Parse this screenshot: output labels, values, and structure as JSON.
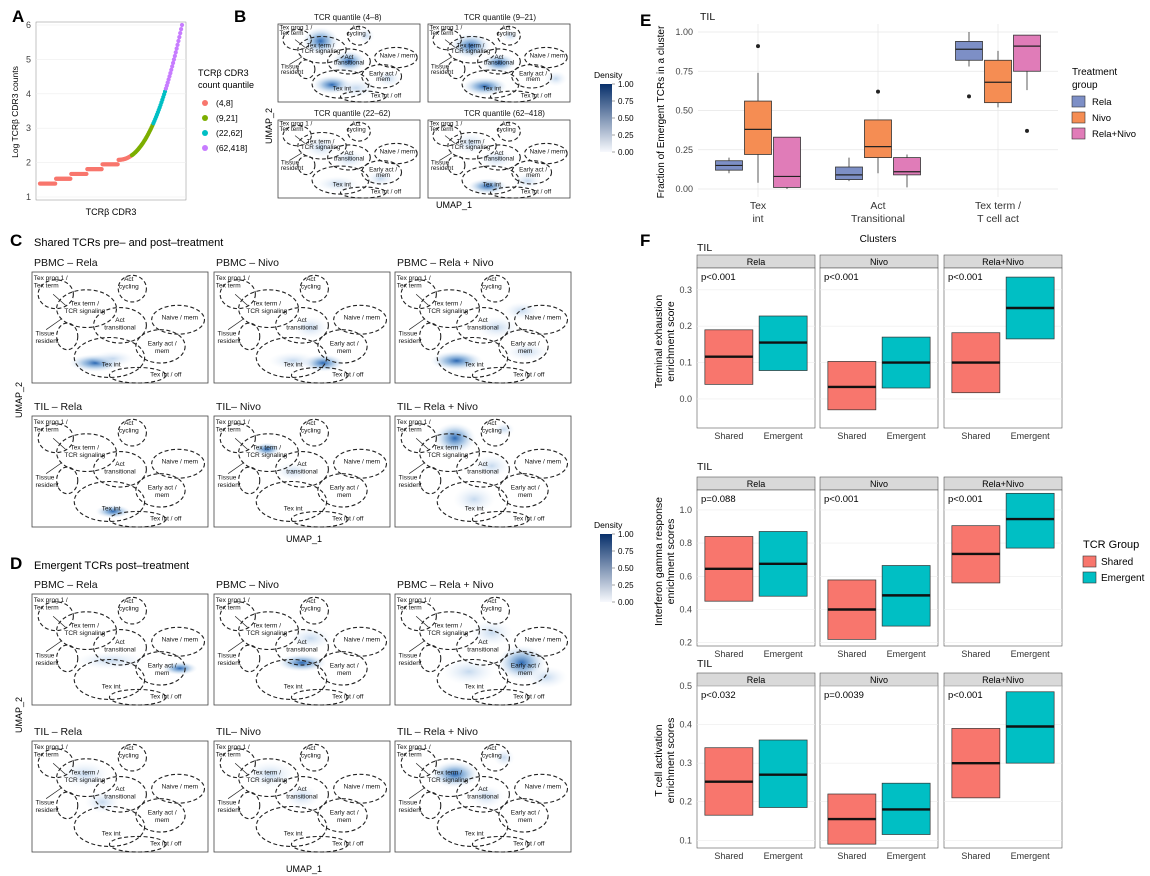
{
  "panels": {
    "A": {
      "label": "A",
      "ylabel": "Log TCRβ CDR3 counts",
      "xlabel": "TCRβ CDR3",
      "yticks": [
        "1",
        "2",
        "3",
        "4",
        "5",
        "6"
      ],
      "legend_title_1": "TCRβ CDR3",
      "legend_title_2": "count quantile",
      "legend": [
        {
          "label": "(4,8]",
          "color": "#F8766D"
        },
        {
          "label": "(9,21]",
          "color": "#7CAE00"
        },
        {
          "label": "(22,62]",
          "color": "#00BFC4"
        },
        {
          "label": "(62,418]",
          "color": "#C77CFF"
        }
      ]
    },
    "B": {
      "label": "B",
      "titles": [
        "TCR quantile (4–8)",
        "TCR quantile (9–21)",
        "TCR quantile (22–62)",
        "TCR quantile (62–418)"
      ],
      "xlabel": "UMAP_1",
      "ylabel": "UMAP_2"
    },
    "C": {
      "label": "C",
      "heading": "Shared TCRs pre– and post–treatment",
      "titles": [
        "PBMC – Rela",
        "PBMC – Nivo",
        "PBMC – Rela + Nivo",
        "TIL – Rela",
        "TIL– Nivo",
        "TIL – Rela + Nivo"
      ],
      "xlabel": "UMAP_1",
      "ylabel": "UMAP_2"
    },
    "D": {
      "label": "D",
      "heading": "Emergent TCRs post–treatment",
      "titles": [
        "PBMC – Rela",
        "PBMC – Nivo",
        "PBMC – Rela + Nivo",
        "TIL – Rela",
        "TIL– Nivo",
        "TIL – Rela + Nivo"
      ],
      "xlabel": "UMAP_1",
      "ylabel": "UMAP_2"
    },
    "density_legend": {
      "title": "Density",
      "ticks": [
        "1.00",
        "0.75",
        "0.50",
        "0.25",
        "0.00"
      ]
    },
    "umap_clusters": [
      "Tex prog 1 /",
      "Tex term",
      "Act",
      "cycling",
      "Tex term /",
      "TCR signaling",
      "Act",
      "transitional",
      "Naive / mem",
      "Tissue",
      "resident",
      "Early act /",
      "mem",
      "Tex int",
      "Tex int / off"
    ]
  },
  "chart_data": [
    {
      "type": "scatter",
      "id": "A",
      "xlabel": "TCRβ CDR3",
      "ylabel": "Log TCRβ CDR3 counts",
      "ylim": [
        1,
        6
      ],
      "series": [
        {
          "name": "(4,8]",
          "color": "#F8766D",
          "y_range": [
            1.39,
            2.08
          ]
        },
        {
          "name": "(9,21]",
          "color": "#7CAE00",
          "y_range": [
            2.2,
            3.04
          ]
        },
        {
          "name": "(22,62]",
          "color": "#00BFC4",
          "y_range": [
            3.09,
            4.13
          ]
        },
        {
          "name": "(62,418]",
          "color": "#C77CFF",
          "y_range": [
            4.13,
            6.0
          ]
        }
      ]
    },
    {
      "type": "box",
      "id": "E",
      "title": "TIL",
      "xlabel": "Clusters",
      "ylabel": "Fraction of Emergent TCRs in a cluster",
      "ylim": [
        0,
        1
      ],
      "yticks": [
        "0.00",
        "0.25",
        "0.50",
        "0.75",
        "1.00"
      ],
      "categories": [
        "Tex int",
        "Act Transitional",
        "Tex term / T cell act"
      ],
      "category_lines": [
        [
          "Tex",
          "int"
        ],
        [
          "Act",
          "Transitional"
        ],
        [
          "Tex term /",
          "T cell act"
        ]
      ],
      "legend_title": [
        "Treatment",
        "group"
      ],
      "series": [
        {
          "name": "Rela",
          "color": "#7D8FC6",
          "boxes": [
            {
              "q1": 0.12,
              "median": 0.15,
              "q3": 0.18,
              "lo": 0.1,
              "hi": 0.2
            },
            {
              "q1": 0.06,
              "median": 0.09,
              "q3": 0.14,
              "lo": 0.05,
              "hi": 0.2
            },
            {
              "q1": 0.82,
              "median": 0.89,
              "q3": 0.94,
              "lo": 0.78,
              "hi": 1.0,
              "outliers": [
                0.59
              ]
            }
          ]
        },
        {
          "name": "Nivo",
          "color": "#F58D53",
          "boxes": [
            {
              "q1": 0.22,
              "median": 0.38,
              "q3": 0.56,
              "lo": 0.04,
              "hi": 0.74,
              "outliers": [
                0.91
              ]
            },
            {
              "q1": 0.2,
              "median": 0.27,
              "q3": 0.44,
              "lo": 0.1,
              "hi": 0.44,
              "outliers": [
                0.62
              ]
            },
            {
              "q1": 0.55,
              "median": 0.68,
              "q3": 0.82,
              "lo": 0.52,
              "hi": 0.88
            }
          ]
        },
        {
          "name": "Rela+Nivo",
          "color": "#E07CB8",
          "boxes": [
            {
              "q1": 0.01,
              "median": 0.08,
              "q3": 0.33,
              "lo": 0.0,
              "hi": 0.33
            },
            {
              "q1": 0.09,
              "median": 0.11,
              "q3": 0.2,
              "lo": 0.01,
              "hi": 0.22
            },
            {
              "q1": 0.75,
              "median": 0.91,
              "q3": 0.98,
              "lo": 0.63,
              "hi": 0.98,
              "outliers": [
                0.37
              ]
            }
          ]
        }
      ]
    },
    {
      "type": "box",
      "id": "F1",
      "title": "TIL",
      "ylabel": "Terminal exhaustion enrichment score",
      "ylim": [
        -0.08,
        0.36
      ],
      "yticks": [
        0.0,
        0.1,
        0.2,
        0.3
      ],
      "facets": [
        "Rela",
        "Nivo",
        "Rela+Nivo"
      ],
      "pvalues": [
        "p<0.001",
        "p<0.001",
        "p<0.001"
      ],
      "categories": [
        "Shared",
        "Emergent"
      ],
      "legend_title": "TCR Group",
      "series": [
        {
          "name": "Shared",
          "color": "#F8766D",
          "boxes": [
            {
              "q1": 0.04,
              "median": 0.116,
              "q3": 0.19
            },
            {
              "q1": -0.03,
              "median": 0.033,
              "q3": 0.103
            },
            {
              "q1": 0.017,
              "median": 0.1,
              "q3": 0.182
            }
          ]
        },
        {
          "name": "Emergent",
          "color": "#00BFC4",
          "boxes": [
            {
              "q1": 0.078,
              "median": 0.155,
              "q3": 0.228
            },
            {
              "q1": 0.03,
              "median": 0.1,
              "q3": 0.17
            },
            {
              "q1": 0.165,
              "median": 0.25,
              "q3": 0.335
            }
          ]
        }
      ]
    },
    {
      "type": "box",
      "id": "F2",
      "title": "TIL",
      "ylabel": "Interferon gamma response enrichment scores",
      "ylim": [
        0.18,
        1.12
      ],
      "yticks": [
        0.2,
        0.4,
        0.6,
        0.8,
        1.0
      ],
      "facets": [
        "Rela",
        "Nivo",
        "Rela+Nivo"
      ],
      "pvalues": [
        "p=0.088",
        "p<0.001",
        "p<0.001"
      ],
      "categories": [
        "Shared",
        "Emergent"
      ],
      "series": [
        {
          "name": "Shared",
          "color": "#F8766D",
          "boxes": [
            {
              "q1": 0.45,
              "median": 0.645,
              "q3": 0.84
            },
            {
              "q1": 0.22,
              "median": 0.4,
              "q3": 0.578
            },
            {
              "q1": 0.56,
              "median": 0.735,
              "q3": 0.905
            }
          ]
        },
        {
          "name": "Emergent",
          "color": "#00BFC4",
          "boxes": [
            {
              "q1": 0.48,
              "median": 0.675,
              "q3": 0.87
            },
            {
              "q1": 0.3,
              "median": 0.485,
              "q3": 0.665
            },
            {
              "q1": 0.77,
              "median": 0.945,
              "q3": 1.1
            }
          ]
        }
      ]
    },
    {
      "type": "box",
      "id": "F3",
      "title": "TIL",
      "ylabel": "T cell activation enrichment scores",
      "ylim": [
        0.08,
        0.5
      ],
      "yticks": [
        0.1,
        0.2,
        0.3,
        0.4,
        0.5
      ],
      "facets": [
        "Rela",
        "Nivo",
        "Rela+Nivo"
      ],
      "pvalues": [
        "p<0.032",
        "p=0.0039",
        "p<0.001"
      ],
      "categories": [
        "Shared",
        "Emergent"
      ],
      "series": [
        {
          "name": "Shared",
          "color": "#F8766D",
          "boxes": [
            {
              "q1": 0.165,
              "median": 0.252,
              "q3": 0.34
            },
            {
              "q1": 0.09,
              "median": 0.155,
              "q3": 0.22
            },
            {
              "q1": 0.21,
              "median": 0.3,
              "q3": 0.39
            }
          ]
        },
        {
          "name": "Emergent",
          "color": "#00BFC4",
          "boxes": [
            {
              "q1": 0.185,
              "median": 0.27,
              "q3": 0.36
            },
            {
              "q1": 0.115,
              "median": 0.18,
              "q3": 0.248
            },
            {
              "q1": 0.3,
              "median": 0.395,
              "q3": 0.485
            }
          ]
        }
      ]
    }
  ],
  "panel_labels": {
    "E": "E",
    "F": "F"
  },
  "legend_F": {
    "title": "TCR Group",
    "items": [
      {
        "label": "Shared",
        "color": "#F8766D"
      },
      {
        "label": "Emergent",
        "color": "#00BFC4"
      }
    ]
  }
}
